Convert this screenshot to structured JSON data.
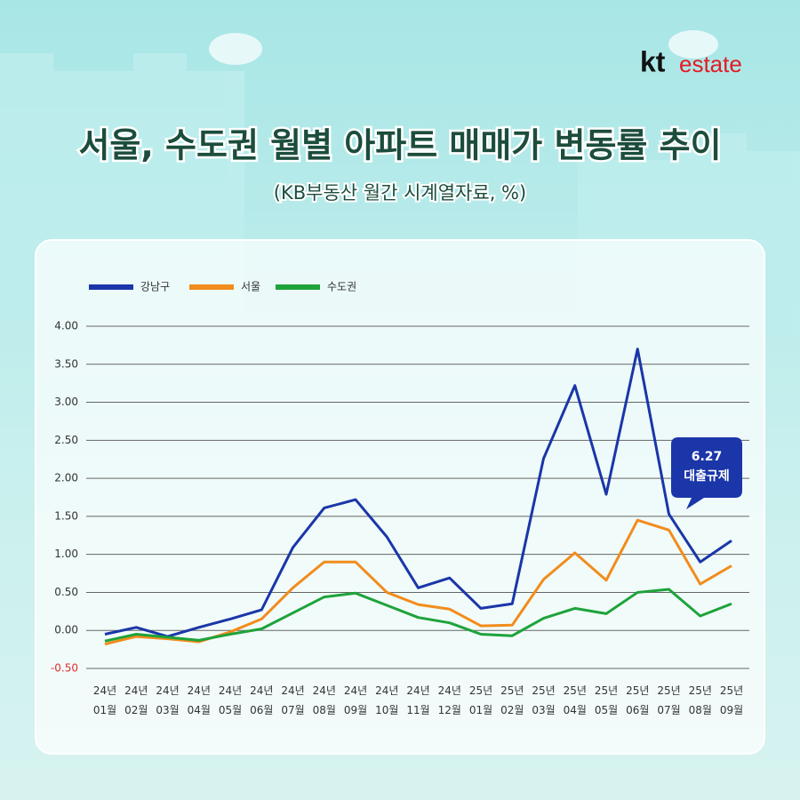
{
  "brand": {
    "mark": "kt",
    "word": "estate"
  },
  "chart_data": {
    "type": "line",
    "title": "서울, 수도권 월별 아파트 매매가 변동률 추이",
    "subtitle": "(KB부동산 월간 시계열자료, %)",
    "categories": [
      "24년 01월",
      "24년 02월",
      "24년 03월",
      "24년 04월",
      "24년 05월",
      "24년 06월",
      "24년 07월",
      "24년 08월",
      "24년 09월",
      "24년 10월",
      "24년 11월",
      "24년 12월",
      "25년 01월",
      "25년 02월",
      "25년 03월",
      "25년 04월",
      "25년 05월",
      "25년 06월",
      "25년 07월",
      "25년 08월",
      "25년 09월"
    ],
    "series": [
      {
        "name": "강남구",
        "color": "#1a36a8",
        "values": [
          -0.05,
          0.04,
          -0.08,
          0.04,
          0.15,
          0.27,
          1.09,
          1.61,
          1.72,
          1.23,
          0.56,
          0.69,
          0.29,
          0.35,
          2.26,
          3.22,
          1.79,
          3.7,
          1.53,
          0.9,
          1.18
        ]
      },
      {
        "name": "서울",
        "color": "#f28c1c",
        "values": [
          -0.18,
          -0.08,
          -0.11,
          -0.15,
          -0.02,
          0.15,
          0.56,
          0.9,
          0.9,
          0.5,
          0.34,
          0.28,
          0.06,
          0.07,
          0.67,
          1.02,
          0.66,
          1.45,
          1.32,
          0.61,
          0.85
        ]
      },
      {
        "name": "수도권",
        "color": "#1ea33a",
        "values": [
          -0.14,
          -0.05,
          -0.09,
          -0.13,
          -0.05,
          0.02,
          0.23,
          0.44,
          0.49,
          0.33,
          0.17,
          0.1,
          -0.05,
          -0.07,
          0.16,
          0.29,
          0.22,
          0.5,
          0.54,
          0.19,
          0.35
        ]
      }
    ],
    "ylim": [
      -0.5,
      4.0
    ],
    "yticks": [
      {
        "value": -0.5,
        "label": "-0.50"
      },
      {
        "value": 0,
        "label": "0.00"
      },
      {
        "value": 0.5,
        "label": "0.50"
      },
      {
        "value": 1,
        "label": "1.00"
      },
      {
        "value": 1.5,
        "label": "1.50"
      },
      {
        "value": 2,
        "label": "2.00"
      },
      {
        "value": 2.5,
        "label": "2.50"
      },
      {
        "value": 3,
        "label": "3.00"
      },
      {
        "value": 3.5,
        "label": "3.50"
      },
      {
        "value": 4,
        "label": "4.00"
      }
    ],
    "negative_tick_color": "#e03030",
    "grid": true,
    "legend": "top-left",
    "annotation": {
      "lines": [
        "6.27",
        "대출규제"
      ],
      "color": "#1a36a8"
    }
  }
}
